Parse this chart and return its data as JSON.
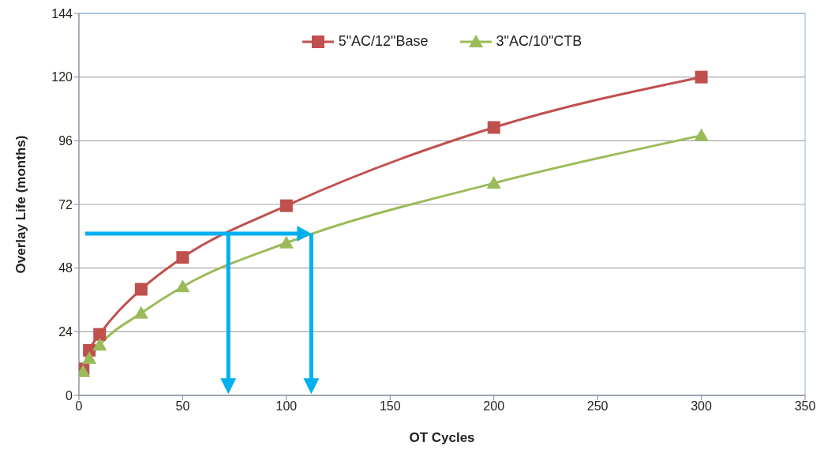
{
  "chart_data": {
    "type": "line",
    "xlabel": "OT Cycles",
    "ylabel": "Overlay Life (months)",
    "x": [
      2,
      5,
      10,
      30,
      50,
      100,
      200,
      300
    ],
    "series": [
      {
        "name": "5\"AC/12\"Base",
        "color": "#c0504d",
        "marker": "square",
        "values": [
          10,
          17,
          23,
          40,
          52,
          71.5,
          101,
          120
        ]
      },
      {
        "name": "3\"AC/10\"CTB",
        "color": "#9bbb59",
        "marker": "triangle",
        "values": [
          9,
          14,
          19,
          31,
          41,
          57.5,
          80,
          98
        ]
      }
    ],
    "xlim": [
      0,
      350
    ],
    "xticks": [
      0,
      50,
      100,
      150,
      200,
      250,
      300,
      350
    ],
    "ylim": [
      0,
      144
    ],
    "yticks": [
      0,
      24,
      48,
      72,
      96,
      120,
      144
    ],
    "grid": "y",
    "legend": "top"
  }
}
